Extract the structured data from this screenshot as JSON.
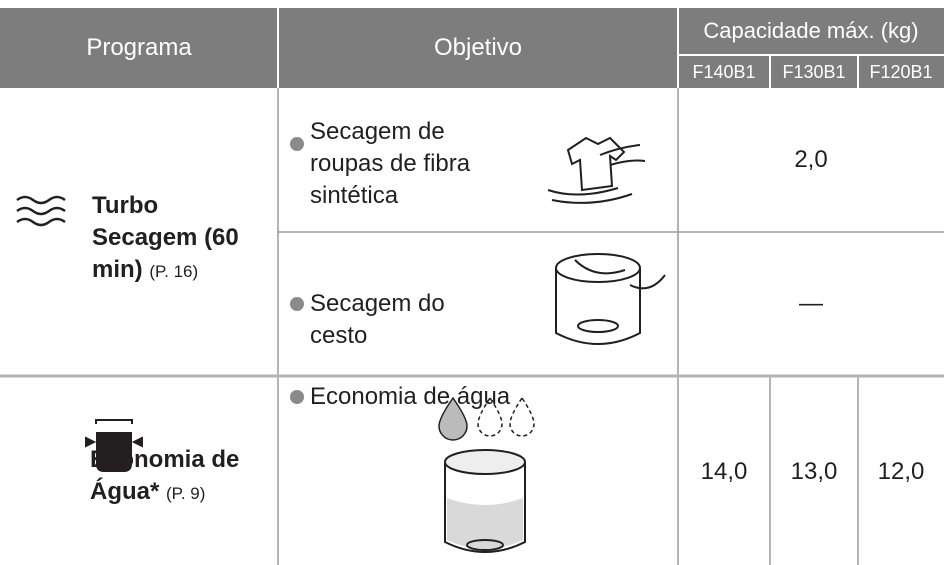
{
  "header": {
    "program": "Programa",
    "objective": "Objetivo",
    "capacity": "Capacidade máx. (kg)",
    "models": [
      "F140B1",
      "F130B1",
      "F120B1"
    ]
  },
  "rows": [
    {
      "program": {
        "name": "Turbo Secagem (60 min)",
        "ref": "(P. 16)"
      },
      "objectives": [
        {
          "text": "Secagem de roupas de fibra sintética",
          "capacity": "2,0"
        },
        {
          "text": "Secagem do cesto",
          "capacity": "—"
        }
      ]
    },
    {
      "program": {
        "name": "Economia de Água*",
        "ref": "(P. 9)"
      },
      "objectives": [
        {
          "text": "Economia de água",
          "capacities": [
            "14,0",
            "13,0",
            "12,0"
          ]
        }
      ]
    }
  ]
}
